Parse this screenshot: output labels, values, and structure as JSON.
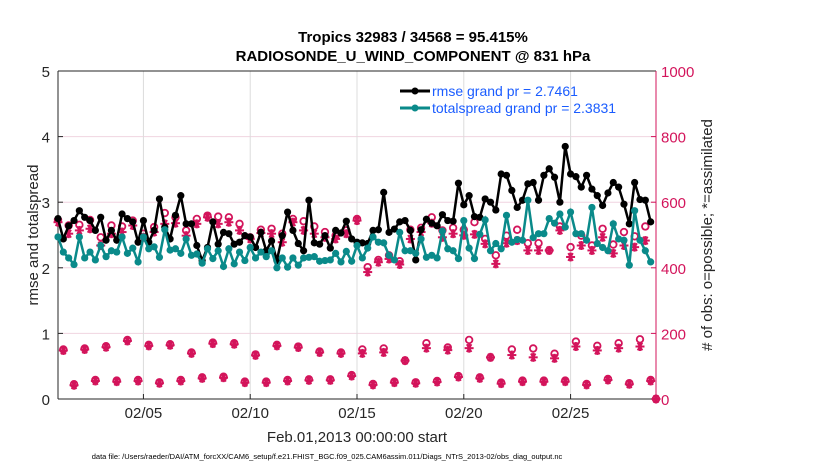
{
  "chart_data": {
    "type": "line",
    "title": "Tropics 32983 / 34568 = 95.415%",
    "subtitle": "RADIOSONDE_U_WIND_COMPONENT @ 831 hPa",
    "xlabel": "Feb.01,2013 00:00:00 start",
    "ylabel": "rmse and totalspread",
    "ylabel_right": "# of obs: o=possible; *=assimilated",
    "footer": "data file: /Users/raeder/DAI/ATM_forcXX/CAM6_setup/f.e21.FHIST_BGC.f09_025.CAM6assim.011/Diags_NTrS_2013-02/obs_diag_output.nc",
    "x_range": [
      "2013-02-01 00:00",
      "2013-03-01 00:00"
    ],
    "x_interval_hours": 6,
    "ylim": [
      0,
      5
    ],
    "ylim_right": [
      0,
      1000
    ],
    "yticks": [
      "0",
      "1",
      "2",
      "3",
      "4",
      "5"
    ],
    "yticks_right": [
      "0",
      "200",
      "400",
      "600",
      "800",
      "1000"
    ],
    "xticks": [
      {
        "label": "02/05",
        "date": "2013-02-05"
      },
      {
        "label": "02/10",
        "date": "2013-02-10"
      },
      {
        "label": "02/15",
        "date": "2013-02-15"
      },
      {
        "label": "02/20",
        "date": "2013-02-20"
      },
      {
        "label": "02/25",
        "date": "2013-02-25"
      }
    ],
    "grid": true,
    "legend_position": "top-right",
    "colors": {
      "rmse": "#000000",
      "totalspread": "#0a8a8a",
      "obs": "#d3145b",
      "legend_text": "#1a5cff"
    },
    "series": [
      {
        "name": "rmse grand pr = 2.7461",
        "axis": "left",
        "values": [
          2.75,
          2.44,
          2.64,
          2.72,
          2.87,
          2.77,
          2.72,
          2.57,
          2.77,
          2.42,
          2.57,
          2.42,
          2.82,
          2.75,
          2.7,
          2.39,
          2.72,
          2.39,
          2.57,
          3.05,
          2.62,
          2.44,
          2.8,
          3.1,
          2.67,
          2.67,
          2.34,
          2.11,
          2.31,
          2.7,
          2.36,
          2.54,
          2.52,
          2.36,
          2.39,
          2.49,
          2.47,
          2.31,
          2.54,
          2.26,
          2.41,
          2.11,
          2.49,
          2.85,
          2.57,
          2.37,
          2.26,
          3.03,
          2.38,
          2.36,
          2.49,
          2.3,
          2.57,
          2.53,
          2.71,
          2.44,
          2.39,
          2.38,
          2.37,
          2.57,
          2.58,
          3.15,
          2.54,
          2.59,
          2.7,
          2.72,
          2.57,
          2.12,
          2.58,
          2.74,
          2.68,
          2.64,
          2.81,
          2.72,
          2.71,
          3.29,
          2.96,
          3.1,
          2.78,
          2.77,
          3.05,
          3.0,
          2.88,
          3.43,
          3.41,
          3.18,
          2.92,
          3.03,
          3.28,
          3.3,
          3.03,
          3.41,
          3.51,
          3.38,
          3.0,
          3.85,
          3.43,
          3.39,
          3.23,
          3.41,
          3.2,
          3.1,
          2.95,
          3.14,
          3.3,
          3.23,
          2.97,
          2.67,
          3.3,
          3.04,
          3.03,
          2.7
        ]
      },
      {
        "name": "totalspread grand pr = 2.3831",
        "axis": "left",
        "values": [
          2.47,
          2.24,
          2.15,
          2.05,
          2.47,
          2.15,
          2.24,
          2.12,
          2.34,
          2.17,
          2.26,
          2.24,
          2.47,
          2.22,
          2.3,
          2.09,
          2.47,
          2.29,
          2.32,
          2.16,
          2.58,
          2.27,
          2.29,
          2.22,
          2.44,
          2.19,
          2.21,
          2.07,
          2.29,
          2.14,
          2.26,
          2.02,
          2.29,
          2.06,
          2.24,
          2.11,
          2.31,
          2.15,
          2.24,
          2.17,
          2.26,
          2.0,
          2.15,
          2.01,
          2.15,
          2.04,
          2.15,
          2.16,
          2.17,
          2.1,
          2.11,
          2.12,
          2.22,
          2.09,
          2.25,
          2.1,
          2.34,
          2.15,
          2.3,
          2.47,
          2.39,
          2.38,
          2.19,
          2.12,
          2.54,
          2.26,
          2.26,
          2.22,
          2.44,
          2.16,
          2.19,
          2.15,
          2.56,
          2.29,
          2.26,
          2.14,
          2.72,
          2.3,
          2.14,
          2.51,
          2.73,
          2.26,
          2.37,
          2.29,
          2.8,
          2.39,
          2.43,
          2.42,
          3.03,
          2.46,
          2.52,
          2.52,
          2.75,
          2.68,
          2.82,
          2.62,
          2.85,
          2.52,
          2.52,
          2.42,
          2.92,
          2.37,
          2.31,
          2.26,
          2.67,
          2.44,
          2.42,
          2.04,
          2.87,
          2.42,
          2.26,
          2.09
        ]
      },
      {
        "name": "possible",
        "axis": "right",
        "marker": "o",
        "values": [
          546,
          151,
          529,
          45,
          531,
          154,
          546,
          58,
          493,
          161,
          529,
          56,
          526,
          180,
          544,
          58,
          504,
          165,
          524,
          51,
          567,
          167,
          554,
          58,
          514,
          142,
          549,
          66,
          559,
          172,
          556,
          68,
          554,
          170,
          534,
          53,
          493,
          136,
          516,
          53,
          519,
          165,
          504,
          58,
          549,
          160,
          542,
          60,
          526,
          145,
          509,
          60,
          498,
          142,
          514,
          73,
          549,
          151,
          402,
          46,
          424,
          154,
          438,
          53,
          420,
          117,
          516,
          51,
          522,
          170,
          554,
          55,
          514,
          157,
          522,
          70,
          516,
          180,
          539,
          66,
          488,
          127,
          438,
          50,
          498,
          151,
          516,
          56,
          475,
          154,
          475,
          56,
          453,
          138,
          526,
          56,
          463,
          175,
          498,
          46,
          468,
          162,
          519,
          61,
          471,
          170,
          509,
          48,
          496,
          182,
          526,
          58,
          0
        ]
      },
      {
        "name": "assimilated",
        "axis": "right",
        "marker": "*",
        "values": [
          539,
          148,
          504,
          42,
          514,
          151,
          519,
          55,
          468,
          158,
          504,
          53,
          509,
          177,
          529,
          55,
          493,
          162,
          509,
          48,
          534,
          164,
          536,
          55,
          498,
          139,
          534,
          63,
          554,
          169,
          534,
          65,
          539,
          167,
          514,
          50,
          488,
          133,
          506,
          50,
          504,
          162,
          478,
          55,
          539,
          157,
          514,
          57,
          504,
          142,
          493,
          57,
          488,
          139,
          504,
          70,
          544,
          139,
          387,
          43,
          417,
          142,
          427,
          50,
          410,
          117,
          488,
          48,
          509,
          155,
          536,
          52,
          493,
          149,
          504,
          67,
          499,
          155,
          502,
          63,
          473,
          127,
          412,
          47,
          475,
          134,
          483,
          53,
          453,
          127,
          453,
          53,
          453,
          124,
          514,
          53,
          433,
          160,
          468,
          43,
          453,
          148,
          493,
          58,
          444,
          155,
          468,
          45,
          463,
          160,
          483,
          55,
          0
        ]
      }
    ]
  }
}
